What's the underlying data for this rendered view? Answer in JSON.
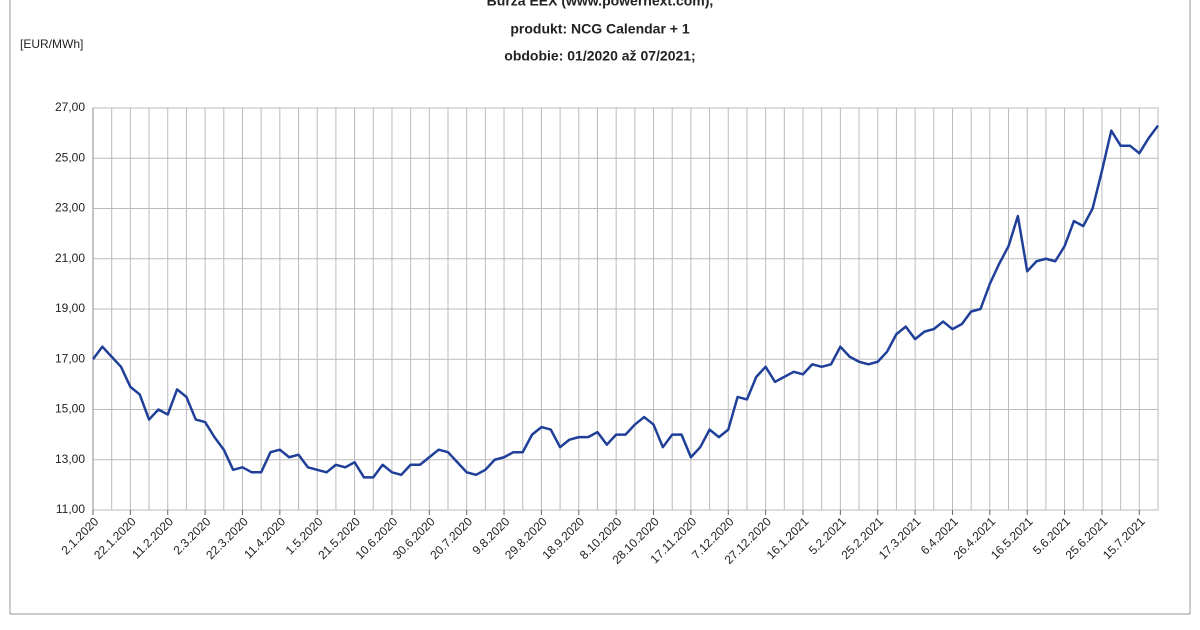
{
  "chart_data": {
    "type": "line",
    "title": [
      "Burza EEX (www.powernext.com),",
      "produkt: NCG Calendar + 1",
      "obdobie: 01/2020 až 07/2021;"
    ],
    "y_label": "[EUR/MWh]",
    "categories": [
      "2.1.2020",
      null,
      null,
      null,
      "22.1.2020",
      null,
      null,
      null,
      "11.2.2020",
      null,
      null,
      null,
      "2.3.2020",
      null,
      null,
      null,
      "22.3.2020",
      null,
      null,
      null,
      "11.4.2020",
      null,
      null,
      null,
      "1.5.2020",
      null,
      null,
      null,
      "21.5.2020",
      null,
      null,
      null,
      "10.6.2020",
      null,
      null,
      null,
      "30.6.2020",
      null,
      null,
      null,
      "20.7.2020",
      null,
      null,
      null,
      "9.8.2020",
      null,
      null,
      null,
      "29.8.2020",
      null,
      null,
      null,
      "18.9.2020",
      null,
      null,
      null,
      "8.10.2020",
      null,
      null,
      null,
      "28.10.2020",
      null,
      null,
      null,
      "17.11.2020",
      null,
      null,
      null,
      "7.12.2020",
      null,
      null,
      null,
      "27.12.2020",
      null,
      null,
      null,
      "16.1.2021",
      null,
      null,
      null,
      "5.2.2021",
      null,
      null,
      null,
      "25.2.2021",
      null,
      null,
      null,
      "17.3.2021",
      null,
      null,
      null,
      "6.4.2021",
      null,
      null,
      null,
      "26.4.2021",
      null,
      null,
      null,
      "16.5.2021",
      null,
      null,
      null,
      "5.6.2021",
      null,
      null,
      null,
      "25.6.2021",
      null,
      null,
      null,
      "15.7.2021",
      null,
      null
    ],
    "values": [
      17.0,
      17.5,
      17.1,
      16.7,
      15.9,
      15.6,
      14.6,
      15.0,
      14.8,
      15.8,
      15.5,
      14.6,
      14.5,
      13.9,
      13.4,
      12.6,
      12.7,
      12.5,
      12.5,
      13.3,
      13.4,
      13.1,
      13.2,
      12.7,
      12.6,
      12.5,
      12.8,
      12.7,
      12.9,
      12.3,
      12.3,
      12.8,
      12.5,
      12.4,
      12.8,
      12.8,
      13.1,
      13.4,
      13.3,
      12.9,
      12.5,
      12.4,
      12.6,
      13.0,
      13.1,
      13.3,
      13.3,
      14.0,
      14.3,
      14.2,
      13.5,
      13.8,
      13.9,
      13.9,
      14.1,
      13.6,
      14.0,
      14.0,
      14.4,
      14.7,
      14.4,
      13.5,
      14.0,
      14.0,
      13.1,
      13.5,
      14.2,
      13.9,
      14.2,
      15.5,
      15.4,
      16.3,
      16.7,
      16.1,
      16.3,
      16.5,
      16.4,
      16.8,
      16.7,
      16.8,
      17.5,
      17.1,
      16.9,
      16.8,
      16.9,
      17.3,
      18.0,
      18.3,
      17.8,
      18.1,
      18.2,
      18.5,
      18.2,
      18.4,
      18.9,
      19.0,
      20.0,
      20.8,
      21.5,
      22.7,
      20.5,
      20.9,
      21.0,
      20.9,
      21.5,
      22.5,
      22.3,
      23.0,
      24.5,
      26.1,
      25.5,
      25.5,
      25.2,
      25.8,
      26.3
    ],
    "color": "#1f3f99",
    "ylim": [
      11,
      27
    ],
    "yticks": [
      {
        "value": 11,
        "label": "11,00"
      },
      {
        "value": 13,
        "label": "13,00"
      },
      {
        "value": 15,
        "label": "15,00"
      },
      {
        "value": 17,
        "label": "17,00"
      },
      {
        "value": 19,
        "label": "19,00"
      },
      {
        "value": 21,
        "label": "21,00"
      },
      {
        "value": 23,
        "label": "23,00"
      },
      {
        "value": 25,
        "label": "25,00"
      },
      {
        "value": 27,
        "label": "27,00"
      }
    ],
    "grid": true
  }
}
